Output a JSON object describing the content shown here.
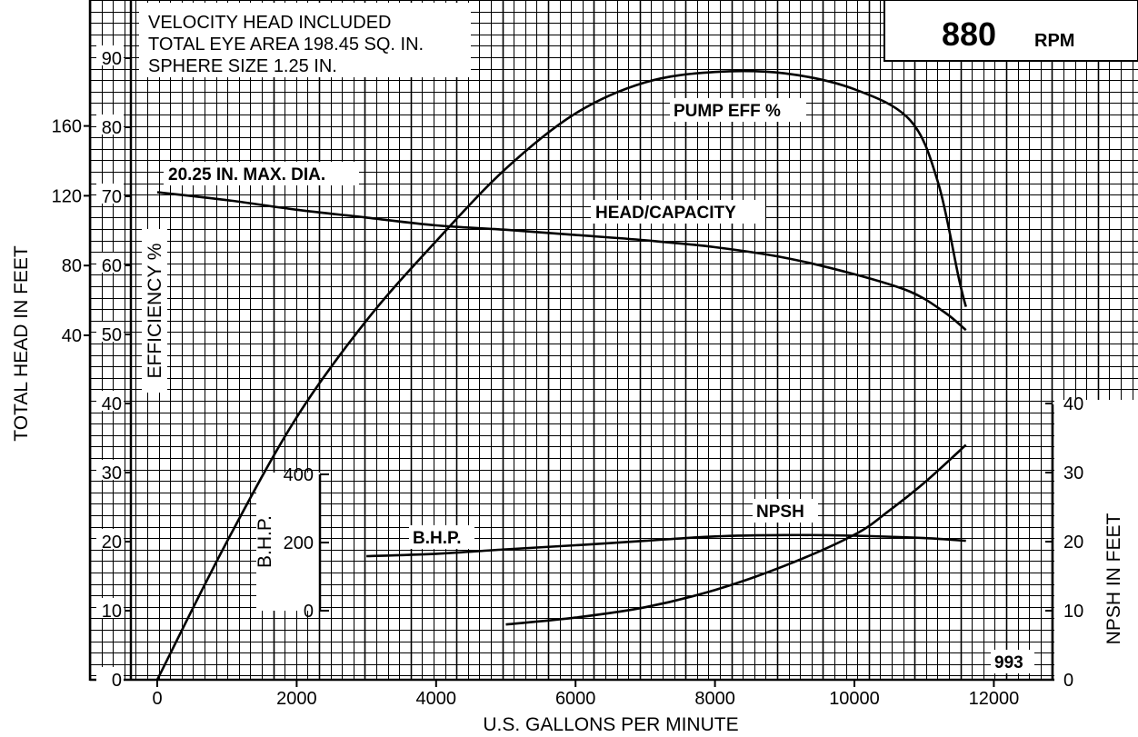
{
  "rpm_box": {
    "value": "880",
    "unit": "RPM"
  },
  "notes": [
    "VELOCITY HEAD INCLUDED",
    "TOTAL EYE AREA 198.45 SQ. IN.",
    "SPHERE SIZE 1.25 IN."
  ],
  "diameter_label": "20.25 IN. MAX. DIA.",
  "footnote": "993",
  "chart_data": {
    "type": "line",
    "grid": true,
    "x": {
      "label": "U.S. GALLONS PER MINUTE",
      "ticks": [
        0,
        2000,
        4000,
        6000,
        8000,
        10000,
        12000
      ],
      "range": [
        0,
        12000
      ]
    },
    "y_axes": {
      "head": {
        "label": "TOTAL HEAD IN FEET",
        "ticks": [
          40,
          80,
          120,
          160
        ],
        "range": [
          40,
          160
        ]
      },
      "efficiency": {
        "label": "EFFICIENCY %",
        "ticks": [
          0,
          10,
          20,
          30,
          40,
          50,
          60,
          70,
          80,
          90
        ]
      },
      "bhp": {
        "label": "B.H.P.",
        "ticks": [
          0,
          200,
          400
        ],
        "range": [
          0,
          400
        ]
      },
      "npsh": {
        "label": "NPSH IN FEET",
        "ticks": [
          0,
          10,
          20,
          30,
          40
        ],
        "range": [
          0,
          40
        ]
      }
    },
    "series": [
      {
        "name": "HEAD/CAPACITY",
        "axis": "head",
        "points": [
          [
            0,
            122
          ],
          [
            1000,
            117.5
          ],
          [
            2000,
            112
          ],
          [
            3000,
            107.5
          ],
          [
            4000,
            103
          ],
          [
            5000,
            100.5
          ],
          [
            6000,
            97.5
          ],
          [
            7000,
            94.5
          ],
          [
            8000,
            90.5
          ],
          [
            9000,
            84.5
          ],
          [
            10000,
            75
          ],
          [
            10800,
            65
          ],
          [
            11300,
            53
          ],
          [
            11600,
            43
          ]
        ]
      },
      {
        "name": "PUMP EFF %",
        "axis": "efficiency",
        "points": [
          [
            0,
            0
          ],
          [
            1000,
            20
          ],
          [
            2000,
            38
          ],
          [
            3000,
            52
          ],
          [
            4000,
            63.5
          ],
          [
            5000,
            74
          ],
          [
            6000,
            82
          ],
          [
            7000,
            86.5
          ],
          [
            8000,
            88
          ],
          [
            9000,
            87.8
          ],
          [
            10000,
            85.5
          ],
          [
            10800,
            81
          ],
          [
            11200,
            72
          ],
          [
            11500,
            58
          ],
          [
            11600,
            54
          ]
        ]
      },
      {
        "name": "B.H.P.",
        "axis": "bhp",
        "points": [
          [
            3000,
            160
          ],
          [
            4000,
            167
          ],
          [
            5000,
            180
          ],
          [
            6000,
            192
          ],
          [
            7000,
            205
          ],
          [
            8000,
            218
          ],
          [
            9000,
            222
          ],
          [
            10000,
            220
          ],
          [
            11000,
            213
          ],
          [
            11600,
            205
          ]
        ]
      },
      {
        "name": "NPSH",
        "axis": "npsh",
        "points": [
          [
            5000,
            8
          ],
          [
            6000,
            9
          ],
          [
            7000,
            10.5
          ],
          [
            8000,
            13
          ],
          [
            9000,
            16.5
          ],
          [
            10000,
            21
          ],
          [
            10500,
            24.5
          ],
          [
            11000,
            28.5
          ],
          [
            11600,
            34
          ]
        ]
      }
    ]
  }
}
